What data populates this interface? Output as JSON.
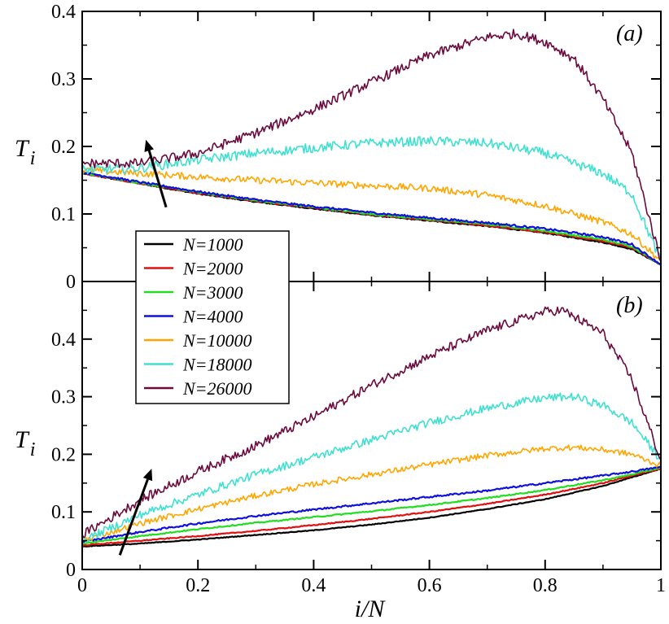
{
  "chart_data": [
    {
      "type": "line",
      "panel_label": "(a)",
      "ylabel_main": "T",
      "ylabel_sub": "i",
      "xlabel": "i/N",
      "xlim": [
        0,
        1
      ],
      "ylim": [
        0,
        0.4
      ],
      "yticks": [
        0,
        0.1,
        0.2,
        0.3,
        0.4
      ],
      "ytick_labels": [
        "0",
        "0.1",
        "0.2",
        "0.3",
        "0.4"
      ],
      "arrow": {
        "from": [
          0.145,
          0.11
        ],
        "to": [
          0.11,
          0.21
        ]
      },
      "series": [
        {
          "name": "N=1000",
          "color": "#000000",
          "noise": 0.0008,
          "points": [
            [
              0,
              0.16
            ],
            [
              0.1,
              0.145
            ],
            [
              0.2,
              0.13
            ],
            [
              0.3,
              0.118
            ],
            [
              0.4,
              0.108
            ],
            [
              0.5,
              0.098
            ],
            [
              0.6,
              0.09
            ],
            [
              0.7,
              0.082
            ],
            [
              0.8,
              0.072
            ],
            [
              0.9,
              0.058
            ],
            [
              0.95,
              0.048
            ],
            [
              1,
              0.025
            ]
          ]
        },
        {
          "name": "N=2000",
          "color": "#e01010",
          "noise": 0.0008,
          "points": [
            [
              0,
              0.16
            ],
            [
              0.1,
              0.145
            ],
            [
              0.2,
              0.131
            ],
            [
              0.3,
              0.119
            ],
            [
              0.4,
              0.109
            ],
            [
              0.5,
              0.099
            ],
            [
              0.6,
              0.091
            ],
            [
              0.7,
              0.083
            ],
            [
              0.8,
              0.073
            ],
            [
              0.9,
              0.06
            ],
            [
              0.95,
              0.05
            ],
            [
              1,
              0.025
            ]
          ]
        },
        {
          "name": "N=3000",
          "color": "#22dd22",
          "noise": 0.0012,
          "points": [
            [
              0,
              0.161
            ],
            [
              0.1,
              0.146
            ],
            [
              0.2,
              0.132
            ],
            [
              0.3,
              0.12
            ],
            [
              0.4,
              0.11
            ],
            [
              0.5,
              0.1
            ],
            [
              0.6,
              0.092
            ],
            [
              0.7,
              0.085
            ],
            [
              0.8,
              0.075
            ],
            [
              0.9,
              0.062
            ],
            [
              0.95,
              0.052
            ],
            [
              1,
              0.025
            ]
          ]
        },
        {
          "name": "N=4000",
          "color": "#1010dd",
          "noise": 0.0015,
          "points": [
            [
              0,
              0.162
            ],
            [
              0.1,
              0.147
            ],
            [
              0.2,
              0.133
            ],
            [
              0.3,
              0.121
            ],
            [
              0.4,
              0.111
            ],
            [
              0.5,
              0.102
            ],
            [
              0.6,
              0.094
            ],
            [
              0.7,
              0.087
            ],
            [
              0.8,
              0.078
            ],
            [
              0.9,
              0.066
            ],
            [
              0.95,
              0.055
            ],
            [
              1,
              0.025
            ]
          ]
        },
        {
          "name": "N=10000",
          "color": "#ffa500",
          "noise": 0.005,
          "points": [
            [
              0,
              0.165
            ],
            [
              0.1,
              0.16
            ],
            [
              0.2,
              0.155
            ],
            [
              0.3,
              0.15
            ],
            [
              0.4,
              0.146
            ],
            [
              0.5,
              0.142
            ],
            [
              0.6,
              0.138
            ],
            [
              0.7,
              0.128
            ],
            [
              0.8,
              0.112
            ],
            [
              0.9,
              0.088
            ],
            [
              0.95,
              0.07
            ],
            [
              1,
              0.03
            ]
          ]
        },
        {
          "name": "N=18000",
          "color": "#40e0d0",
          "noise": 0.007,
          "points": [
            [
              0,
              0.165
            ],
            [
              0.1,
              0.168
            ],
            [
              0.2,
              0.18
            ],
            [
              0.3,
              0.19
            ],
            [
              0.4,
              0.198
            ],
            [
              0.5,
              0.205
            ],
            [
              0.6,
              0.208
            ],
            [
              0.7,
              0.205
            ],
            [
              0.8,
              0.19
            ],
            [
              0.9,
              0.16
            ],
            [
              0.95,
              0.13
            ],
            [
              1,
              0.03
            ]
          ]
        },
        {
          "name": "N=26000",
          "color": "#6b0a3d",
          "noise": 0.007,
          "points": [
            [
              0,
              0.175
            ],
            [
              0.1,
              0.175
            ],
            [
              0.2,
              0.19
            ],
            [
              0.3,
              0.22
            ],
            [
              0.4,
              0.255
            ],
            [
              0.5,
              0.295
            ],
            [
              0.6,
              0.335
            ],
            [
              0.7,
              0.362
            ],
            [
              0.75,
              0.367
            ],
            [
              0.8,
              0.355
            ],
            [
              0.85,
              0.33
            ],
            [
              0.9,
              0.27
            ],
            [
              0.95,
              0.19
            ],
            [
              1,
              0.03
            ]
          ]
        }
      ]
    },
    {
      "type": "line",
      "panel_label": "(b)",
      "ylabel_main": "T",
      "ylabel_sub": "i",
      "xlabel": "i/N",
      "xlim": [
        0,
        1
      ],
      "ylim": [
        0,
        0.5
      ],
      "yticks": [
        0,
        0.1,
        0.2,
        0.3,
        0.4
      ],
      "ytick_labels": [
        "0",
        "0.1",
        "0.2",
        "0.3",
        "0.4"
      ],
      "xticks": [
        0,
        0.2,
        0.4,
        0.6,
        0.8,
        1
      ],
      "xtick_labels": [
        "0",
        "0.2",
        "0.4",
        "0.6",
        "0.8",
        "1"
      ],
      "arrow": {
        "from": [
          0.065,
          0.025
        ],
        "to": [
          0.12,
          0.175
        ]
      },
      "series": [
        {
          "name": "N=1000",
          "color": "#000000",
          "noise": 0.0006,
          "points": [
            [
              0,
              0.04
            ],
            [
              0.1,
              0.045
            ],
            [
              0.2,
              0.052
            ],
            [
              0.3,
              0.06
            ],
            [
              0.4,
              0.068
            ],
            [
              0.5,
              0.078
            ],
            [
              0.6,
              0.09
            ],
            [
              0.7,
              0.105
            ],
            [
              0.8,
              0.122
            ],
            [
              0.9,
              0.145
            ],
            [
              0.95,
              0.16
            ],
            [
              1,
              0.175
            ]
          ]
        },
        {
          "name": "N=2000",
          "color": "#e01010",
          "noise": 0.0008,
          "points": [
            [
              0,
              0.042
            ],
            [
              0.1,
              0.05
            ],
            [
              0.2,
              0.058
            ],
            [
              0.3,
              0.067
            ],
            [
              0.4,
              0.077
            ],
            [
              0.5,
              0.088
            ],
            [
              0.6,
              0.1
            ],
            [
              0.7,
              0.114
            ],
            [
              0.8,
              0.13
            ],
            [
              0.9,
              0.15
            ],
            [
              0.95,
              0.163
            ],
            [
              1,
              0.175
            ]
          ]
        },
        {
          "name": "N=3000",
          "color": "#22dd22",
          "noise": 0.001,
          "points": [
            [
              0,
              0.045
            ],
            [
              0.1,
              0.058
            ],
            [
              0.2,
              0.07
            ],
            [
              0.3,
              0.081
            ],
            [
              0.4,
              0.091
            ],
            [
              0.5,
              0.101
            ],
            [
              0.6,
              0.112
            ],
            [
              0.7,
              0.124
            ],
            [
              0.8,
              0.138
            ],
            [
              0.9,
              0.155
            ],
            [
              0.95,
              0.165
            ],
            [
              1,
              0.177
            ]
          ]
        },
        {
          "name": "N=4000",
          "color": "#1010dd",
          "noise": 0.0015,
          "points": [
            [
              0,
              0.048
            ],
            [
              0.1,
              0.065
            ],
            [
              0.2,
              0.08
            ],
            [
              0.3,
              0.093
            ],
            [
              0.4,
              0.104
            ],
            [
              0.5,
              0.115
            ],
            [
              0.6,
              0.126
            ],
            [
              0.7,
              0.137
            ],
            [
              0.8,
              0.15
            ],
            [
              0.9,
              0.163
            ],
            [
              0.95,
              0.17
            ],
            [
              1,
              0.178
            ]
          ]
        },
        {
          "name": "N=10000",
          "color": "#ffa500",
          "noise": 0.005,
          "points": [
            [
              0,
              0.05
            ],
            [
              0.1,
              0.08
            ],
            [
              0.2,
              0.105
            ],
            [
              0.3,
              0.128
            ],
            [
              0.4,
              0.148
            ],
            [
              0.5,
              0.165
            ],
            [
              0.6,
              0.182
            ],
            [
              0.7,
              0.198
            ],
            [
              0.8,
              0.21
            ],
            [
              0.85,
              0.212
            ],
            [
              0.9,
              0.208
            ],
            [
              0.95,
              0.2
            ],
            [
              1,
              0.18
            ]
          ]
        },
        {
          "name": "N=18000",
          "color": "#40e0d0",
          "noise": 0.007,
          "points": [
            [
              0,
              0.05
            ],
            [
              0.1,
              0.095
            ],
            [
              0.2,
              0.13
            ],
            [
              0.3,
              0.165
            ],
            [
              0.4,
              0.195
            ],
            [
              0.5,
              0.225
            ],
            [
              0.6,
              0.255
            ],
            [
              0.7,
              0.28
            ],
            [
              0.8,
              0.298
            ],
            [
              0.85,
              0.3
            ],
            [
              0.9,
              0.285
            ],
            [
              0.95,
              0.255
            ],
            [
              1,
              0.19
            ]
          ]
        },
        {
          "name": "N=26000",
          "color": "#6b0a3d",
          "noise": 0.008,
          "points": [
            [
              0,
              0.06
            ],
            [
              0.1,
              0.12
            ],
            [
              0.2,
              0.17
            ],
            [
              0.3,
              0.215
            ],
            [
              0.4,
              0.265
            ],
            [
              0.5,
              0.32
            ],
            [
              0.6,
              0.37
            ],
            [
              0.7,
              0.415
            ],
            [
              0.8,
              0.448
            ],
            [
              0.83,
              0.45
            ],
            [
              0.9,
              0.41
            ],
            [
              0.95,
              0.33
            ],
            [
              1,
              0.19
            ]
          ]
        }
      ]
    }
  ],
  "legend": [
    {
      "label": "N=1000",
      "color": "#000000"
    },
    {
      "label": "N=2000",
      "color": "#e01010"
    },
    {
      "label": "N=3000",
      "color": "#22dd22"
    },
    {
      "label": "N=4000",
      "color": "#1010dd"
    },
    {
      "label": "N=10000",
      "color": "#ffa500"
    },
    {
      "label": "N=18000",
      "color": "#40e0d0"
    },
    {
      "label": "N=26000",
      "color": "#6b0a3d"
    }
  ]
}
